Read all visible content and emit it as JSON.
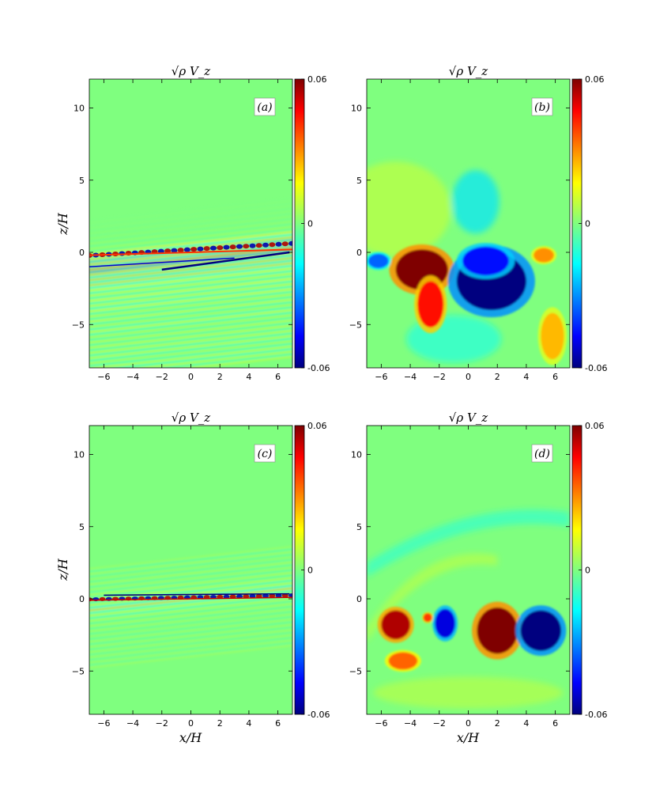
{
  "figure": {
    "xlabel": "x/H",
    "ylabel": "z/H"
  },
  "colormap": {
    "name": "jet",
    "stops": [
      "#00007f",
      "#0000ff",
      "#00ffff",
      "#7fff7f",
      "#ffff00",
      "#ff0000",
      "#7f0000"
    ],
    "background": "#7fff7f"
  },
  "chart_data": [
    {
      "type": "heatmap",
      "panel_label": "(a)",
      "title": "√ρ V_z",
      "xlim": [
        -7,
        7
      ],
      "ylim": [
        -8,
        12
      ],
      "xticks": [
        -6,
        -4,
        -2,
        0,
        2,
        4,
        6
      ],
      "yticks": [
        -5,
        0,
        5,
        10
      ],
      "colorbar": {
        "min": -0.06,
        "max": 0.06,
        "tick_labels": [
          "0.06",
          "0",
          "-0.06"
        ]
      },
      "description_features": "thin tilted banded wave pattern near z=0, striations below midplane"
    },
    {
      "type": "heatmap",
      "panel_label": "(b)",
      "title": "√ρ V_z",
      "xlim": [
        -7,
        7
      ],
      "ylim": [
        -8,
        12
      ],
      "xticks": [
        -6,
        -4,
        -2,
        0,
        2,
        4,
        6
      ],
      "yticks": [
        -5,
        0,
        5,
        10
      ],
      "colorbar": {
        "min": -0.06,
        "max": 0.06,
        "tick_labels": [
          "0.06",
          "0",
          "-0.06"
        ]
      },
      "blobs": [
        {
          "x": -3.2,
          "z": -1.2,
          "rx": 1.8,
          "rz": 1.4,
          "value": 0.06
        },
        {
          "x": -2.6,
          "z": -3.6,
          "rx": 0.9,
          "rz": 1.6,
          "value": 0.045
        },
        {
          "x": 1.6,
          "z": -2.0,
          "rx": 2.4,
          "rz": 2.0,
          "value": -0.06
        },
        {
          "x": 1.2,
          "z": -0.6,
          "rx": 1.6,
          "rz": 1.0,
          "value": -0.045
        },
        {
          "x": 5.2,
          "z": -0.2,
          "rx": 0.7,
          "rz": 0.5,
          "value": 0.03
        },
        {
          "x": 5.8,
          "z": -5.8,
          "rx": 0.8,
          "rz": 1.6,
          "value": 0.025
        },
        {
          "x": -6.2,
          "z": -0.6,
          "rx": 0.7,
          "rz": 0.5,
          "value": -0.035
        }
      ]
    },
    {
      "type": "heatmap",
      "panel_label": "(c)",
      "title": "√ρ V_z",
      "xlim": [
        -7,
        7
      ],
      "ylim": [
        -8,
        12
      ],
      "xticks": [
        -6,
        -4,
        -2,
        0,
        2,
        4,
        6
      ],
      "yticks": [
        -5,
        0,
        5,
        10
      ],
      "colorbar": {
        "min": -0.06,
        "max": 0.06,
        "tick_labels": [
          "0.06",
          "0",
          "-0.06"
        ]
      }
    },
    {
      "type": "heatmap",
      "panel_label": "(d)",
      "title": "√ρ V_z",
      "xlim": [
        -7,
        7
      ],
      "ylim": [
        -8,
        12
      ],
      "xticks": [
        -6,
        -4,
        -2,
        0,
        2,
        4,
        6
      ],
      "yticks": [
        -5,
        0,
        5,
        10
      ],
      "colorbar": {
        "min": -0.06,
        "max": 0.06,
        "tick_labels": [
          "0.06",
          "0",
          "-0.06"
        ]
      },
      "blobs": [
        {
          "x": -5.0,
          "z": -1.8,
          "rx": 1.0,
          "rz": 1.0,
          "value": 0.055
        },
        {
          "x": -4.5,
          "z": -4.3,
          "rx": 1.0,
          "rz": 0.6,
          "value": 0.035
        },
        {
          "x": -1.6,
          "z": -1.7,
          "rx": 0.7,
          "rz": 1.0,
          "value": -0.05
        },
        {
          "x": 2.0,
          "z": -2.2,
          "rx": 1.4,
          "rz": 1.6,
          "value": 0.06
        },
        {
          "x": 5.0,
          "z": -2.2,
          "rx": 1.4,
          "rz": 1.4,
          "value": -0.06
        },
        {
          "x": -2.8,
          "z": -1.3,
          "rx": 0.3,
          "rz": 0.3,
          "value": 0.04
        }
      ]
    }
  ]
}
